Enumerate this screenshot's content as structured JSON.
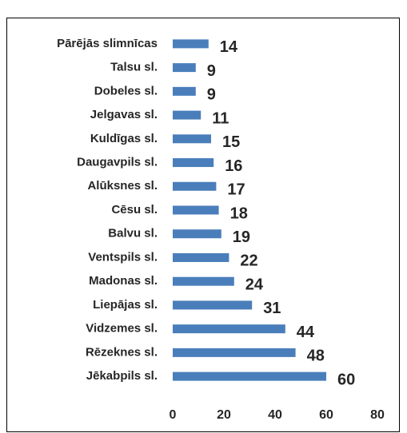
{
  "chart_data": {
    "type": "barh",
    "categories": [
      "Pārējās slimnīcas",
      "Talsu sl.",
      "Dobeles sl.",
      "Jelgavas sl.",
      "Kuldīgas sl.",
      "Daugavpils sl.",
      "Alūksnes sl.",
      "Cēsu sl.",
      "Balvu sl.",
      "Ventspils sl.",
      "Madonas sl.",
      "Liepājas sl.",
      "Vidzemes sl.",
      "Rēzeknes sl.",
      "Jēkabpils sl."
    ],
    "values": [
      14,
      9,
      9,
      11,
      15,
      16,
      17,
      18,
      19,
      22,
      24,
      31,
      44,
      48,
      60
    ],
    "color": "#4a7ebb",
    "xlim": [
      0,
      80
    ],
    "xticks": [
      0,
      20,
      40,
      60,
      80
    ],
    "grid": false
  }
}
